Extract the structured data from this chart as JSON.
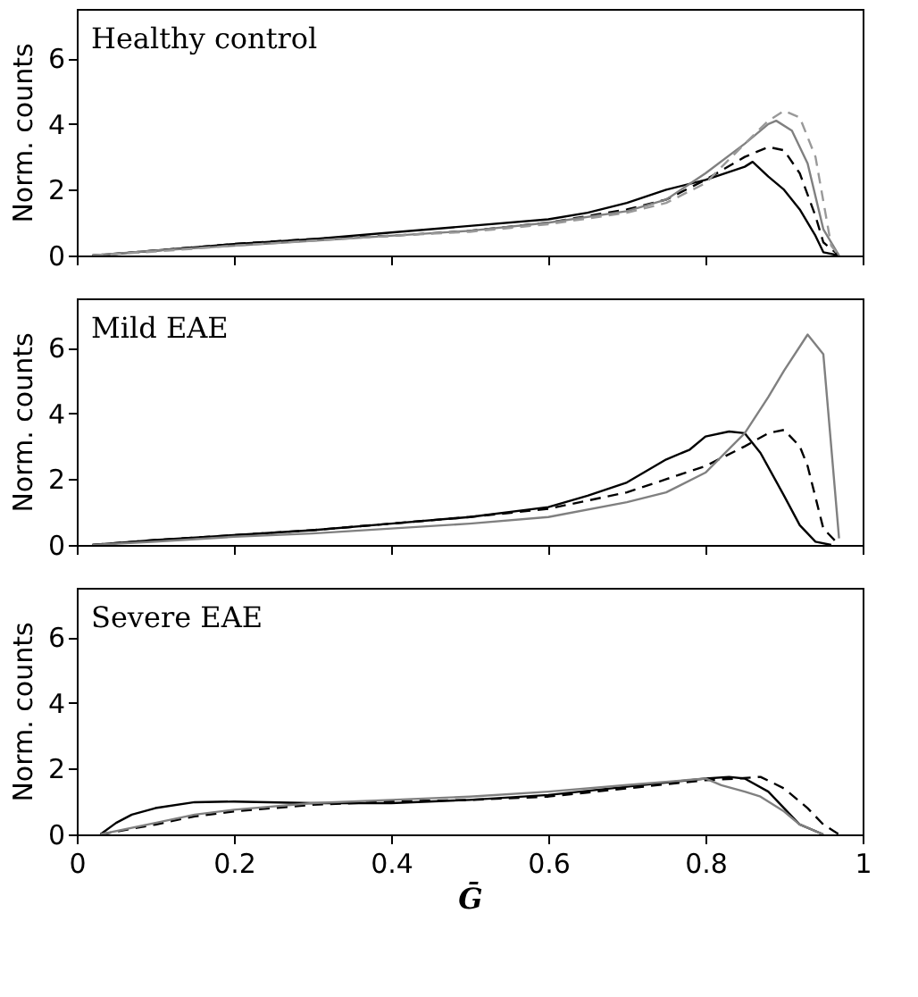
{
  "chart_data": [
    {
      "type": "line",
      "title": "Healthy control",
      "ylabel": "Norm. counts",
      "xlim": [
        0,
        1
      ],
      "ylim": [
        0,
        7.5
      ],
      "xticks": [
        0,
        0.2,
        0.4,
        0.6,
        0.8,
        1
      ],
      "yticks": [
        0,
        2,
        4,
        6
      ],
      "tick_labels": "y",
      "grid": false,
      "series": [
        {
          "color": "#000000",
          "line_style": "solid",
          "x": [
            0.02,
            0.05,
            0.1,
            0.2,
            0.3,
            0.4,
            0.5,
            0.6,
            0.65,
            0.7,
            0.75,
            0.8,
            0.85,
            0.86,
            0.88,
            0.9,
            0.92,
            0.94,
            0.95,
            0.97
          ],
          "values": [
            0,
            0.05,
            0.15,
            0.35,
            0.5,
            0.7,
            0.9,
            1.1,
            1.3,
            1.6,
            2.0,
            2.3,
            2.7,
            2.85,
            2.4,
            2.0,
            1.4,
            0.6,
            0.1,
            0
          ]
        },
        {
          "color": "#000000",
          "line_style": "dashed",
          "x": [
            0.02,
            0.1,
            0.2,
            0.3,
            0.4,
            0.5,
            0.6,
            0.7,
            0.75,
            0.8,
            0.85,
            0.88,
            0.9,
            0.92,
            0.94,
            0.95,
            0.97
          ],
          "values": [
            0,
            0.15,
            0.35,
            0.5,
            0.6,
            0.75,
            1.0,
            1.4,
            1.7,
            2.3,
            3.0,
            3.3,
            3.2,
            2.5,
            1.2,
            0.4,
            0
          ]
        },
        {
          "color": "#808080",
          "line_style": "solid",
          "x": [
            0.02,
            0.1,
            0.2,
            0.3,
            0.4,
            0.5,
            0.6,
            0.7,
            0.75,
            0.8,
            0.85,
            0.88,
            0.89,
            0.91,
            0.93,
            0.95,
            0.97
          ],
          "values": [
            0,
            0.15,
            0.3,
            0.45,
            0.6,
            0.75,
            1.0,
            1.35,
            1.7,
            2.5,
            3.4,
            4.0,
            4.1,
            3.8,
            2.8,
            0.8,
            0
          ]
        },
        {
          "color": "#999999",
          "line_style": "dashed",
          "x": [
            0.02,
            0.1,
            0.2,
            0.3,
            0.4,
            0.5,
            0.6,
            0.7,
            0.75,
            0.8,
            0.85,
            0.88,
            0.9,
            0.92,
            0.94,
            0.96,
            0.97
          ],
          "values": [
            0,
            0.12,
            0.3,
            0.45,
            0.6,
            0.72,
            0.95,
            1.3,
            1.6,
            2.2,
            3.4,
            4.1,
            4.4,
            4.2,
            3.0,
            0.3,
            0
          ]
        }
      ]
    },
    {
      "type": "line",
      "title": "Mild EAE",
      "ylabel": "Norm. counts",
      "xlim": [
        0,
        1
      ],
      "ylim": [
        0,
        7.5
      ],
      "xticks": [
        0,
        0.2,
        0.4,
        0.6,
        0.8,
        1
      ],
      "yticks": [
        0,
        2,
        4,
        6
      ],
      "tick_labels": "y",
      "grid": false,
      "series": [
        {
          "color": "#000000",
          "line_style": "solid",
          "x": [
            0.02,
            0.1,
            0.2,
            0.3,
            0.4,
            0.5,
            0.6,
            0.65,
            0.7,
            0.75,
            0.78,
            0.8,
            0.83,
            0.85,
            0.87,
            0.9,
            0.92,
            0.94,
            0.96
          ],
          "values": [
            0,
            0.15,
            0.3,
            0.45,
            0.65,
            0.85,
            1.15,
            1.5,
            1.9,
            2.6,
            2.9,
            3.3,
            3.45,
            3.4,
            2.8,
            1.5,
            0.6,
            0.1,
            0
          ]
        },
        {
          "color": "#000000",
          "line_style": "dashed",
          "x": [
            0.02,
            0.1,
            0.2,
            0.3,
            0.4,
            0.5,
            0.6,
            0.7,
            0.75,
            0.8,
            0.85,
            0.88,
            0.9,
            0.92,
            0.93,
            0.95,
            0.97
          ],
          "values": [
            0,
            0.15,
            0.3,
            0.45,
            0.65,
            0.85,
            1.1,
            1.6,
            2.0,
            2.4,
            3.0,
            3.4,
            3.5,
            3.0,
            2.4,
            0.5,
            0
          ]
        },
        {
          "color": "#808080",
          "line_style": "solid",
          "x": [
            0.02,
            0.1,
            0.2,
            0.3,
            0.4,
            0.5,
            0.6,
            0.7,
            0.75,
            0.8,
            0.85,
            0.88,
            0.9,
            0.93,
            0.95,
            0.96,
            0.97
          ],
          "values": [
            0,
            0.1,
            0.25,
            0.35,
            0.5,
            0.65,
            0.85,
            1.3,
            1.6,
            2.2,
            3.4,
            4.5,
            5.3,
            6.4,
            5.8,
            3.0,
            0.2
          ]
        }
      ]
    },
    {
      "type": "line",
      "title": "Severe EAE",
      "ylabel": "Norm. counts",
      "xlabel": "Ḡ",
      "xlim": [
        0,
        1
      ],
      "ylim": [
        0,
        7.5
      ],
      "xticks": [
        0,
        0.2,
        0.4,
        0.6,
        0.8,
        1
      ],
      "yticks": [
        0,
        2,
        4,
        6
      ],
      "grid": false,
      "series": [
        {
          "color": "#000000",
          "line_style": "solid",
          "x": [
            0.03,
            0.05,
            0.07,
            0.1,
            0.15,
            0.2,
            0.3,
            0.4,
            0.5,
            0.6,
            0.7,
            0.8,
            0.83,
            0.85,
            0.88,
            0.9,
            0.92,
            0.95
          ],
          "values": [
            0,
            0.35,
            0.6,
            0.8,
            0.98,
            1.0,
            0.95,
            0.95,
            1.05,
            1.2,
            1.45,
            1.7,
            1.75,
            1.7,
            1.3,
            0.8,
            0.3,
            0
          ]
        },
        {
          "color": "#000000",
          "line_style": "dashed",
          "x": [
            0.03,
            0.1,
            0.15,
            0.2,
            0.3,
            0.4,
            0.5,
            0.6,
            0.7,
            0.8,
            0.84,
            0.87,
            0.9,
            0.93,
            0.95,
            0.97
          ],
          "values": [
            0,
            0.3,
            0.55,
            0.7,
            0.9,
            1.0,
            1.05,
            1.15,
            1.4,
            1.65,
            1.7,
            1.75,
            1.4,
            0.8,
            0.3,
            0
          ]
        },
        {
          "color": "#808080",
          "line_style": "solid",
          "x": [
            0.03,
            0.1,
            0.15,
            0.2,
            0.3,
            0.4,
            0.5,
            0.6,
            0.7,
            0.8,
            0.82,
            0.85,
            0.87,
            0.9,
            0.92,
            0.95
          ],
          "values": [
            0,
            0.35,
            0.6,
            0.75,
            0.95,
            1.05,
            1.15,
            1.3,
            1.5,
            1.7,
            1.5,
            1.3,
            1.15,
            0.7,
            0.3,
            0
          ]
        }
      ]
    }
  ]
}
